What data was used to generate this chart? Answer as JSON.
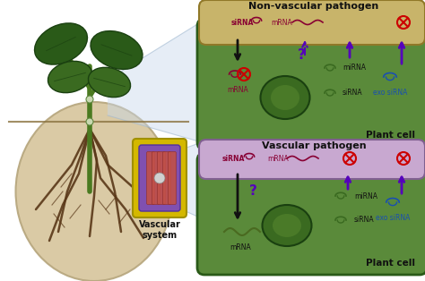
{
  "bg_color": "#ffffff",
  "fig_size": [
    4.74,
    3.14
  ],
  "dpi": 100,
  "top_title": "Non-vascular pathogen",
  "bottom_title": "Vascular pathogen",
  "vascular_label": "Vascular\nsystem",
  "colors": {
    "green_cell": "#5a8a3a",
    "tan_pathogen": "#c8b46a",
    "purple_pathogen": "#c8a8d0",
    "nucleus_dark": "#3a6a20",
    "nucleus_inner": "#4a7a28",
    "soil": "#d8c8a0",
    "soil_edge": "#b8a880",
    "root": "#5a3818",
    "stem": "#4a7a20",
    "leaf": "#2a5a18",
    "leaf2": "#3a6a20",
    "arrow_black": "#111111",
    "arrow_purple": "#5500bb",
    "text_dark": "#111111",
    "text_blue": "#1a4fb0",
    "text_maroon": "#880033",
    "inhibit_red": "#cc0000",
    "perspective_fill": "#c8d8ec",
    "vas_outer": "#d4b800",
    "vas_mid": "#8050b0",
    "vas_inner": "#c05048"
  }
}
